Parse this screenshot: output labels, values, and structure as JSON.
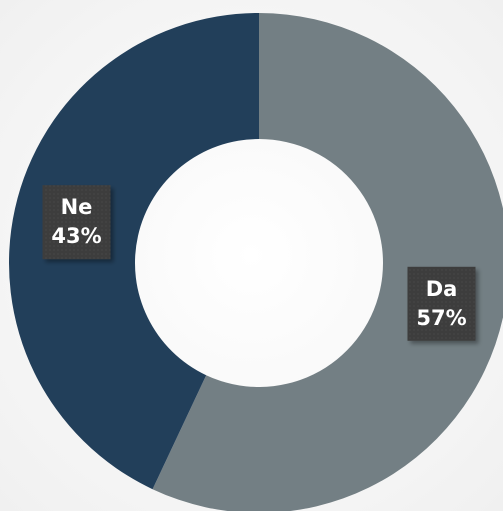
{
  "chart_data": {
    "type": "donut",
    "categories": [
      "Da",
      "Ne"
    ],
    "values": [
      57,
      43
    ],
    "value_labels": [
      "57%",
      "43%"
    ],
    "colors": [
      "#737f84",
      "#223f5a"
    ]
  }
}
